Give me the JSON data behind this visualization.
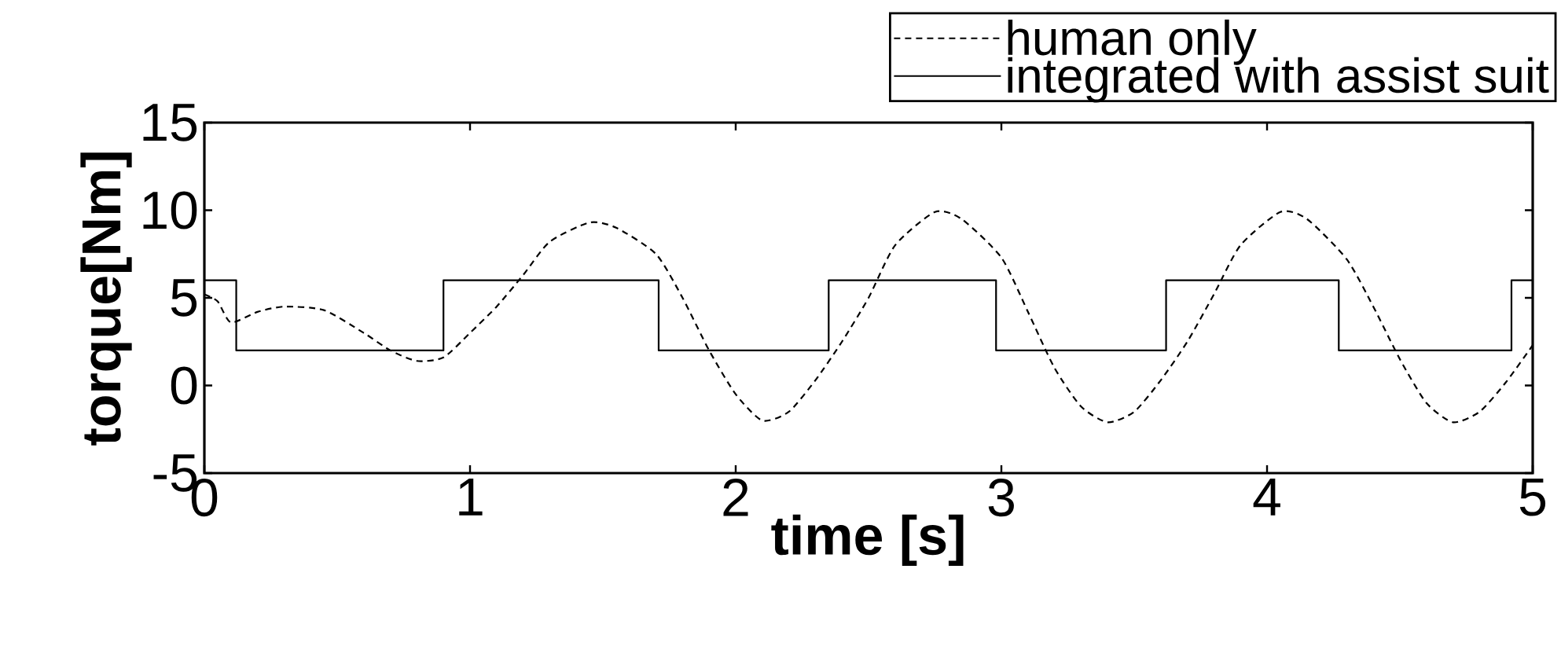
{
  "chart_data": {
    "type": "line",
    "xlabel": "time [s]",
    "ylabel": "torque[Nm]",
    "xlim": [
      0,
      5
    ],
    "ylim": [
      -5,
      15
    ],
    "xticks": [
      0,
      1,
      2,
      3,
      4,
      5
    ],
    "yticks": [
      -5,
      0,
      5,
      10,
      15
    ],
    "grid": false,
    "legend": "top right",
    "marker": "none",
    "series": [
      {
        "name": "human only",
        "type": "line",
        "line_style": "dashed",
        "color": "#000000",
        "x": [
          0,
          0.05,
          0.1,
          0.2,
          0.3,
          0.45,
          0.6,
          0.7,
          0.8,
          0.9,
          1.0,
          1.1,
          1.2,
          1.3,
          1.45,
          1.55,
          1.7,
          1.8,
          1.9,
          2.0,
          2.1,
          2.2,
          2.3,
          2.4,
          2.5,
          2.6,
          2.75,
          2.85,
          3.0,
          3.1,
          3.2,
          3.3,
          3.4,
          3.5,
          3.6,
          3.7,
          3.8,
          3.9,
          4.05,
          4.15,
          4.3,
          4.4,
          4.5,
          4.6,
          4.7,
          4.8,
          4.9,
          5.0
        ],
        "values": [
          5.2,
          4.8,
          3.6,
          4.2,
          4.5,
          4.3,
          3,
          2,
          1.4,
          1.6,
          3,
          4.5,
          6.3,
          8.2,
          9.3,
          9,
          7.5,
          5,
          2,
          -0.5,
          -2,
          -1.5,
          0.3,
          2.5,
          5,
          8,
          9.9,
          9.5,
          7.3,
          4.2,
          1,
          -1.2,
          -2.1,
          -1.5,
          0.3,
          2.5,
          5.2,
          8,
          9.9,
          9.5,
          7.2,
          4.5,
          1.5,
          -1,
          -2.1,
          -1.5,
          0.2,
          2.3
        ]
      },
      {
        "name": "integrated with assist suit",
        "type": "step",
        "line_style": "solid",
        "color": "#000000",
        "x": [
          0,
          0.12,
          0.9,
          1.71,
          2.35,
          2.98,
          3.62,
          4.27,
          4.92,
          5.0
        ],
        "values": [
          6,
          2,
          6,
          2,
          6,
          2,
          6,
          2,
          6,
          6
        ]
      }
    ]
  }
}
